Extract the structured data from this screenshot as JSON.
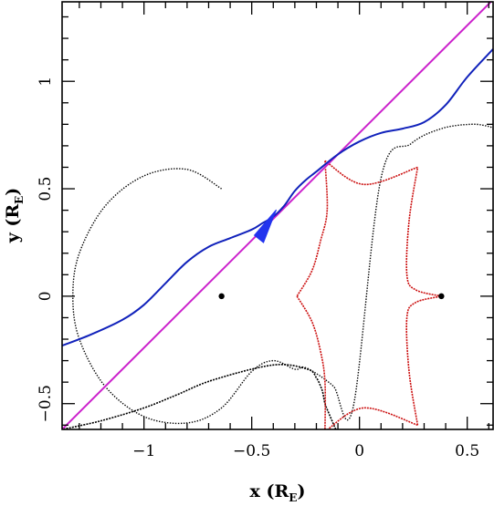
{
  "chart_data": {
    "type": "line",
    "xlabel": {
      "main": "x (R",
      "sub": "E",
      "close": ")"
    },
    "ylabel": {
      "main": "y (R",
      "sub": "E",
      "close": ")"
    },
    "xlim": [
      -1.38,
      0.62
    ],
    "ylim": [
      -0.62,
      1.37
    ],
    "x_ticks": [
      -1,
      -0.5,
      0,
      0.5
    ],
    "x_tick_labels": [
      "−1",
      "−0.5",
      "0",
      "0.5"
    ],
    "y_ticks": [
      -0.5,
      0,
      0.5,
      1
    ],
    "y_tick_labels": [
      "−0.5",
      "0",
      "0.5",
      "1"
    ],
    "grid": false,
    "lens_positions": [
      [
        -0.64,
        0.0
      ],
      [
        0.38,
        0.0
      ]
    ],
    "colors": {
      "magenta_line": "#cc22cc",
      "blue_curve": "#1122bb",
      "red_caustic": "#cc1111",
      "black_curve": "#000000",
      "arrow": "#2233ee"
    },
    "series": [
      {
        "x": [
          -1.38,
          0.62
        ],
        "y": [
          -0.62,
          1.38
        ]
      },
      {
        "x": [
          -1.38,
          -1.25,
          -1.1,
          -1.0,
          -0.9,
          -0.8,
          -0.7,
          -0.6,
          -0.5,
          -0.45,
          -0.4,
          -0.35,
          -0.3,
          -0.25,
          -0.2,
          -0.1,
          0.0,
          0.1,
          0.2,
          0.3,
          0.4,
          0.5,
          0.62
        ],
        "y": [
          -0.23,
          -0.18,
          -0.11,
          -0.04,
          0.06,
          0.16,
          0.23,
          0.27,
          0.31,
          0.34,
          0.37,
          0.42,
          0.49,
          0.54,
          0.58,
          0.66,
          0.72,
          0.76,
          0.78,
          0.81,
          0.89,
          1.02,
          1.15
        ]
      },
      {
        "x": [
          -0.64,
          -0.8,
          -1.0,
          -1.18,
          -1.3,
          -1.33,
          -1.3,
          -1.18,
          -1.0,
          -0.8,
          -0.64,
          -0.5,
          -0.4,
          -0.3,
          -0.26,
          -0.2,
          -0.12,
          -0.03,
          0.1,
          0.24,
          0.38,
          0.52,
          0.6,
          0.62
        ],
        "y": [
          0.5,
          0.59,
          0.56,
          0.42,
          0.2,
          0.0,
          -0.2,
          -0.42,
          -0.56,
          -0.59,
          -0.52,
          -0.35,
          -0.3,
          -0.34,
          -0.33,
          -0.36,
          -0.42,
          -0.52,
          0.55,
          0.71,
          0.78,
          0.8,
          0.79,
          0.78
        ]
      },
      {
        "x": [
          -0.11,
          -0.14,
          -0.16,
          -0.17,
          -0.18,
          -0.2,
          -0.24,
          -0.4,
          -0.68,
          -0.85,
          -1.0,
          -1.2,
          -1.38
        ],
        "y": [
          -0.62,
          -0.55,
          -0.5,
          -0.45,
          -0.42,
          -0.38,
          -0.34,
          -0.32,
          -0.39,
          -0.46,
          -0.52,
          -0.58,
          -0.62
        ]
      },
      {
        "x": [
          -0.16,
          -0.15,
          -0.18,
          -0.22,
          -0.29,
          -0.22,
          -0.18,
          -0.16,
          -0.16,
          0.02,
          0.27,
          0.23,
          0.22,
          0.26,
          0.38,
          0.26,
          0.22,
          0.23,
          0.27,
          0.02,
          -0.16
        ],
        "y": [
          0.63,
          0.4,
          0.26,
          0.12,
          0.0,
          -0.12,
          -0.26,
          -0.4,
          -0.63,
          -0.52,
          -0.6,
          -0.35,
          -0.1,
          -0.03,
          0.0,
          0.03,
          0.1,
          0.35,
          0.6,
          0.52,
          0.63
        ]
      }
    ]
  }
}
